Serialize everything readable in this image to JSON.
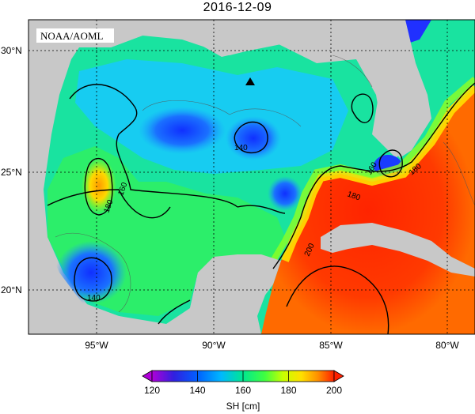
{
  "title": "2016-12-09",
  "watermark": "NOAA/AOML",
  "colors": {
    "land": "#c8c8c8",
    "ocean_low": "#1a1aff",
    "ocean_mid": "#00e87a",
    "ocean_high": "#ff2a00",
    "marker": "#000000"
  },
  "x_ticks": [
    "95°W",
    "90°W",
    "85°W",
    "80°W"
  ],
  "y_ticks": [
    "30°N",
    "25°N",
    "20°N"
  ],
  "contour_labels": [
    "140",
    "160",
    "180",
    "160",
    "180",
    "180",
    "200",
    "140",
    "180"
  ],
  "colorbar": {
    "label": "SH [cm]",
    "ticks": [
      "120",
      "140",
      "160",
      "180",
      "200"
    ],
    "range": [
      120,
      200
    ],
    "colors": [
      "#b000d8",
      "#3020e0",
      "#0080ff",
      "#00d8ff",
      "#00e880",
      "#40ff40",
      "#c8ff00",
      "#ffe000",
      "#ff9000",
      "#ff2000"
    ]
  },
  "marker": {
    "symbol": "triangle",
    "label": ""
  }
}
